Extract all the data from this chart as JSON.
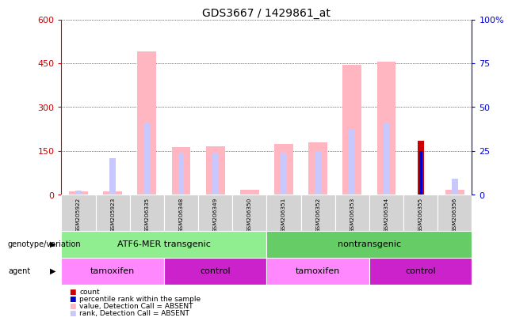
{
  "title": "GDS3667 / 1429861_at",
  "samples": [
    "GSM205922",
    "GSM205923",
    "GSM206335",
    "GSM206348",
    "GSM206349",
    "GSM206350",
    "GSM206351",
    "GSM206352",
    "GSM206353",
    "GSM206354",
    "GSM206355",
    "GSM206356"
  ],
  "value_absent": [
    12,
    12,
    490,
    162,
    165,
    18,
    175,
    180,
    445,
    455,
    0,
    18
  ],
  "rank_absent_pct": [
    2.5,
    21,
    41,
    24,
    24,
    0.5,
    24,
    25,
    37,
    41,
    0,
    9
  ],
  "count_present": [
    0,
    0,
    0,
    0,
    0,
    0,
    0,
    0,
    0,
    0,
    185,
    0
  ],
  "rank_present_pct": [
    0,
    0,
    0,
    0,
    0,
    0,
    0,
    0,
    0,
    0,
    25,
    0
  ],
  "ylim_left": [
    0,
    600
  ],
  "ylim_right": [
    0,
    100
  ],
  "yticks_left": [
    0,
    150,
    300,
    450,
    600
  ],
  "yticks_right": [
    0,
    25,
    50,
    75,
    100
  ],
  "ytick_labels_left": [
    "0",
    "150",
    "300",
    "450",
    "600"
  ],
  "ytick_labels_right": [
    "0",
    "25",
    "50",
    "75",
    "100%"
  ],
  "color_value_absent": "#ffb6c1",
  "color_rank_absent": "#c8c8ff",
  "color_count": "#cc0000",
  "color_rank_present": "#0000cc",
  "group_labels": [
    {
      "label": "ATF6-MER transgenic",
      "start": 0,
      "end": 5,
      "color": "#90ee90"
    },
    {
      "label": "nontransgenic",
      "start": 6,
      "end": 11,
      "color": "#66cc66"
    }
  ],
  "agent_labels": [
    {
      "label": "tamoxifen",
      "start": 0,
      "end": 2,
      "color": "#ff88ff"
    },
    {
      "label": "control",
      "start": 3,
      "end": 5,
      "color": "#cc22cc"
    },
    {
      "label": "tamoxifen",
      "start": 6,
      "end": 8,
      "color": "#ff88ff"
    },
    {
      "label": "control",
      "start": 9,
      "end": 11,
      "color": "#cc22cc"
    }
  ],
  "legend_items": [
    {
      "label": "count",
      "color": "#cc0000"
    },
    {
      "label": "percentile rank within the sample",
      "color": "#0000cc"
    },
    {
      "label": "value, Detection Call = ABSENT",
      "color": "#ffb6c1"
    },
    {
      "label": "rank, Detection Call = ABSENT",
      "color": "#c8c8ff"
    }
  ],
  "genotype_label": "genotype/variation",
  "agent_label": "agent",
  "background_color": "#ffffff",
  "tick_color_left": "#cc0000",
  "tick_color_right": "#0000cc"
}
